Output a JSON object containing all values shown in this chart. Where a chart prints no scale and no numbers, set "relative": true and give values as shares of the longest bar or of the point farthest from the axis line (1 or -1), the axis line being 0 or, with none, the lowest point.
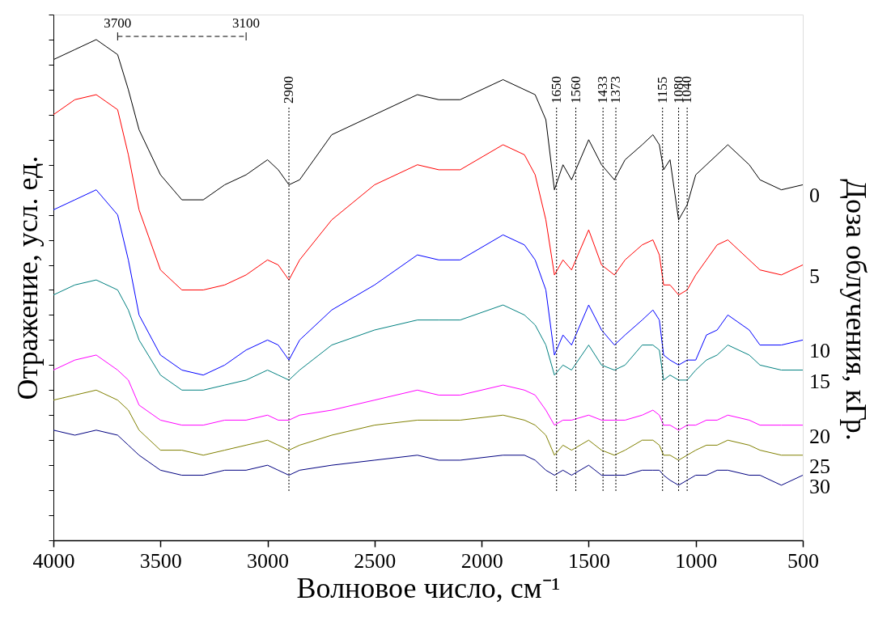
{
  "chart_data": {
    "type": "line",
    "relative": true,
    "xlabel": "Волновое число, см⁻¹",
    "ylabel": "Отражение, усл. ед.",
    "y2label": "Доза облучения, кГр.",
    "xlim": [
      4000,
      500
    ],
    "xticks": [
      4000,
      3500,
      3000,
      2500,
      2000,
      1500,
      1000,
      500
    ],
    "tick_labels": "x",
    "grid": false,
    "marker": "none",
    "line_style": "solid",
    "x": [
      4000,
      3900,
      3800,
      3700,
      3650,
      3600,
      3500,
      3400,
      3300,
      3200,
      3100,
      3000,
      2950,
      2900,
      2850,
      2700,
      2500,
      2300,
      2200,
      2100,
      1900,
      1800,
      1750,
      1700,
      1660,
      1620,
      1580,
      1500,
      1440,
      1380,
      1330,
      1250,
      1200,
      1170,
      1150,
      1120,
      1080,
      1040,
      1000,
      950,
      900,
      850,
      750,
      700,
      600,
      500
    ],
    "series": [
      {
        "name": "0",
        "color": "#000000",
        "values": [
          0.96,
          0.98,
          1.0,
          0.97,
          0.9,
          0.82,
          0.73,
          0.68,
          0.68,
          0.71,
          0.73,
          0.76,
          0.74,
          0.71,
          0.72,
          0.81,
          0.85,
          0.89,
          0.88,
          0.88,
          0.92,
          0.9,
          0.89,
          0.84,
          0.7,
          0.75,
          0.72,
          0.8,
          0.75,
          0.72,
          0.76,
          0.79,
          0.81,
          0.79,
          0.74,
          0.76,
          0.64,
          0.67,
          0.73,
          0.75,
          0.77,
          0.79,
          0.75,
          0.72,
          0.7,
          0.71
        ]
      },
      {
        "name": "5",
        "color": "#ff0000",
        "values": [
          0.85,
          0.88,
          0.89,
          0.86,
          0.77,
          0.66,
          0.54,
          0.5,
          0.5,
          0.51,
          0.53,
          0.56,
          0.55,
          0.52,
          0.56,
          0.64,
          0.71,
          0.75,
          0.74,
          0.74,
          0.79,
          0.77,
          0.73,
          0.64,
          0.53,
          0.56,
          0.54,
          0.62,
          0.55,
          0.53,
          0.56,
          0.59,
          0.6,
          0.57,
          0.51,
          0.51,
          0.49,
          0.5,
          0.53,
          0.56,
          0.59,
          0.6,
          0.56,
          0.54,
          0.53,
          0.55
        ]
      },
      {
        "name": "10",
        "color": "#0000ff",
        "values": [
          0.66,
          0.68,
          0.7,
          0.65,
          0.56,
          0.45,
          0.37,
          0.34,
          0.33,
          0.35,
          0.38,
          0.4,
          0.39,
          0.36,
          0.4,
          0.46,
          0.51,
          0.57,
          0.56,
          0.56,
          0.61,
          0.59,
          0.56,
          0.5,
          0.37,
          0.41,
          0.39,
          0.47,
          0.42,
          0.39,
          0.41,
          0.44,
          0.46,
          0.44,
          0.37,
          0.36,
          0.35,
          0.36,
          0.36,
          0.41,
          0.42,
          0.45,
          0.42,
          0.39,
          0.39,
          0.4
        ]
      },
      {
        "name": "15",
        "color": "#008080",
        "values": [
          0.49,
          0.51,
          0.52,
          0.5,
          0.46,
          0.4,
          0.33,
          0.3,
          0.3,
          0.31,
          0.32,
          0.34,
          0.33,
          0.32,
          0.34,
          0.39,
          0.42,
          0.44,
          0.44,
          0.44,
          0.47,
          0.45,
          0.43,
          0.39,
          0.33,
          0.35,
          0.34,
          0.39,
          0.35,
          0.34,
          0.35,
          0.39,
          0.39,
          0.38,
          0.32,
          0.33,
          0.32,
          0.32,
          0.34,
          0.36,
          0.37,
          0.39,
          0.37,
          0.35,
          0.34,
          0.34
        ]
      },
      {
        "name": "20",
        "color": "#ff00ff",
        "values": [
          0.34,
          0.36,
          0.37,
          0.34,
          0.32,
          0.27,
          0.24,
          0.23,
          0.23,
          0.24,
          0.24,
          0.25,
          0.24,
          0.24,
          0.25,
          0.26,
          0.28,
          0.3,
          0.29,
          0.29,
          0.31,
          0.3,
          0.29,
          0.26,
          0.23,
          0.24,
          0.24,
          0.25,
          0.24,
          0.24,
          0.24,
          0.25,
          0.26,
          0.25,
          0.23,
          0.23,
          0.22,
          0.23,
          0.23,
          0.24,
          0.24,
          0.25,
          0.24,
          0.23,
          0.23,
          0.23
        ]
      },
      {
        "name": "25",
        "color": "#808000",
        "values": [
          0.28,
          0.29,
          0.3,
          0.28,
          0.26,
          0.22,
          0.18,
          0.18,
          0.17,
          0.18,
          0.19,
          0.2,
          0.19,
          0.18,
          0.19,
          0.21,
          0.23,
          0.24,
          0.24,
          0.24,
          0.25,
          0.24,
          0.23,
          0.21,
          0.17,
          0.19,
          0.18,
          0.2,
          0.18,
          0.17,
          0.18,
          0.2,
          0.2,
          0.19,
          0.17,
          0.17,
          0.16,
          0.17,
          0.18,
          0.19,
          0.19,
          0.2,
          0.19,
          0.18,
          0.17,
          0.17
        ]
      },
      {
        "name": "30",
        "color": "#000080",
        "values": [
          0.22,
          0.21,
          0.22,
          0.21,
          0.19,
          0.17,
          0.14,
          0.13,
          0.13,
          0.14,
          0.14,
          0.15,
          0.14,
          0.13,
          0.14,
          0.15,
          0.16,
          0.17,
          0.16,
          0.16,
          0.17,
          0.17,
          0.16,
          0.14,
          0.13,
          0.14,
          0.13,
          0.15,
          0.13,
          0.13,
          0.13,
          0.14,
          0.14,
          0.14,
          0.13,
          0.12,
          0.11,
          0.12,
          0.13,
          0.13,
          0.14,
          0.14,
          0.13,
          0.13,
          0.11,
          0.13
        ]
      }
    ],
    "ref_lines": [
      {
        "axis": "x",
        "value": 2900,
        "label": "2900",
        "color": "#000000",
        "line_style": "dotted"
      },
      {
        "axis": "x",
        "value": 1650,
        "label": "1650",
        "color": "#000000",
        "line_style": "dotted"
      },
      {
        "axis": "x",
        "value": 1560,
        "label": "1560",
        "color": "#000000",
        "line_style": "dotted"
      },
      {
        "axis": "x",
        "value": 1433,
        "label": "1433",
        "color": "#000000",
        "line_style": "dotted"
      },
      {
        "axis": "x",
        "value": 1373,
        "label": "1373",
        "color": "#000000",
        "line_style": "dotted"
      },
      {
        "axis": "x",
        "value": 1155,
        "label": "1155",
        "color": "#000000",
        "line_style": "dotted"
      },
      {
        "axis": "x",
        "value": 1080,
        "label": "1080",
        "color": "#000000",
        "line_style": "dotted"
      },
      {
        "axis": "x",
        "value": 1040,
        "label": "1040",
        "color": "#000000",
        "line_style": "dotted"
      }
    ],
    "annotations": [
      {
        "text": "3700",
        "x": 3700
      },
      {
        "text": "3100",
        "x": 3100
      }
    ]
  }
}
